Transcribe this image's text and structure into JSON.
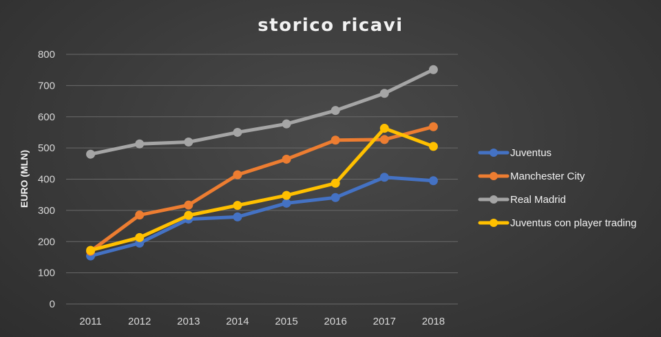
{
  "chart_data": {
    "type": "line",
    "title": "storico ricavi",
    "xlabel": "",
    "ylabel": "EURO (MLN)",
    "ylim": [
      0,
      800
    ],
    "yticks": [
      0,
      100,
      200,
      300,
      400,
      500,
      600,
      700,
      800
    ],
    "x": [
      "2011",
      "2012",
      "2013",
      "2014",
      "2015",
      "2016",
      "2017",
      "2018"
    ],
    "grid": true,
    "legend_position": "right",
    "series": [
      {
        "name": "Juventus",
        "color": "#4472c4",
        "values": [
          154,
          195,
          272,
          279,
          323,
          341,
          406,
          395
        ]
      },
      {
        "name": "Manchester City",
        "color": "#ed7d31",
        "values": [
          169,
          285,
          317,
          414,
          464,
          525,
          527,
          568
        ]
      },
      {
        "name": "Real Madrid",
        "color": "#a5a5a5",
        "values": [
          480,
          513,
          519,
          550,
          577,
          620,
          675,
          751
        ]
      },
      {
        "name": "Juventus con player trading",
        "color": "#ffc000",
        "values": [
          172,
          213,
          284,
          316,
          348,
          387,
          563,
          505
        ]
      }
    ]
  }
}
